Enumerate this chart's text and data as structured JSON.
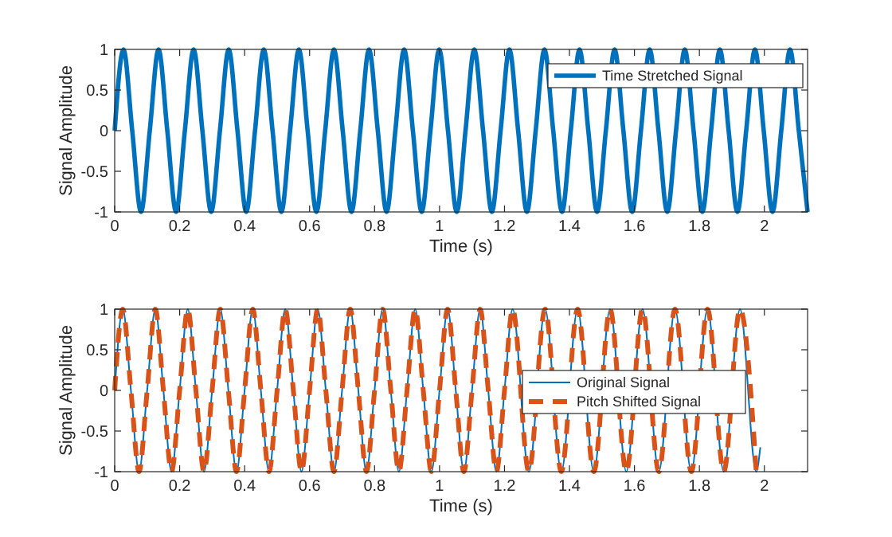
{
  "chart_data": [
    {
      "type": "line",
      "xlabel": "Time (s)",
      "ylabel": "Signal Amplitude",
      "legend": "top right",
      "xlim": [
        0,
        2.133
      ],
      "ylim": [
        -1,
        1
      ],
      "xticks": [
        0,
        0.2,
        0.4,
        0.6,
        0.8,
        1,
        1.2,
        1.4,
        1.6,
        1.8,
        2
      ],
      "yticks": [
        -1,
        -0.5,
        0,
        0.5,
        1
      ],
      "x": [
        0,
        0.027,
        0.054,
        0.081,
        0.108,
        0.135,
        0.162,
        0.189,
        0.216,
        0.243,
        0.27,
        0.297,
        0.324,
        0.351,
        0.378,
        0.405,
        0.432,
        0.459,
        0.486,
        0.513,
        0.54,
        0.567,
        0.594,
        0.621,
        0.648,
        0.675,
        0.702,
        0.729,
        0.756,
        0.783,
        0.81,
        0.837,
        0.864,
        0.891,
        0.918,
        0.945,
        0.972,
        0.999,
        1.026,
        1.053,
        1.08,
        1.107,
        1.134,
        1.161,
        1.188,
        1.215,
        1.242,
        1.269,
        1.296,
        1.323,
        1.35,
        1.377,
        1.404,
        1.431,
        1.458,
        1.485,
        1.512,
        1.539,
        1.566,
        1.593,
        1.62,
        1.647,
        1.674,
        1.701,
        1.728,
        1.755,
        1.782,
        1.809,
        1.836,
        1.863,
        1.89,
        1.917,
        1.944,
        1.971,
        1.998,
        2.025,
        2.052,
        2.079,
        2.106,
        2.133
      ],
      "series": [
        {
          "name": "Time Stretched Signal",
          "color": "#0072bd",
          "line_style": "solid",
          "values": [
            0,
            1,
            0,
            -1,
            0,
            1,
            0,
            -1,
            0,
            1,
            0,
            -1,
            0,
            1,
            0,
            -1,
            0,
            1,
            0,
            -1,
            0,
            1,
            0,
            -1,
            0,
            1,
            0,
            -1,
            0,
            1,
            0,
            -1,
            0,
            1,
            0,
            -1,
            0,
            1,
            0,
            -1,
            0,
            1,
            0,
            -1,
            0,
            1,
            0,
            -1,
            0,
            1,
            0,
            -1,
            0,
            1,
            0,
            -1,
            0,
            1,
            0,
            -1,
            0,
            1,
            0,
            -1,
            0,
            1,
            0,
            -1,
            0,
            1,
            0,
            -1,
            0,
            1,
            0,
            -1,
            0,
            1,
            0,
            -1
          ]
        }
      ]
    },
    {
      "type": "line",
      "xlabel": "Time (s)",
      "ylabel": "Signal Amplitude",
      "legend": "right",
      "xlim": [
        0,
        2.133
      ],
      "ylim": [
        -1,
        1
      ],
      "xticks": [
        0,
        0.2,
        0.4,
        0.6,
        0.8,
        1,
        1.2,
        1.4,
        1.6,
        1.8,
        2
      ],
      "yticks": [
        -1,
        -0.5,
        0,
        0.5,
        1
      ],
      "series": [
        {
          "name": "Original Signal",
          "color": "#0072bd",
          "line_style": "solid",
          "x": [
            0,
            0.025,
            0.05,
            0.075,
            0.1,
            0.125,
            0.15,
            0.175,
            0.2,
            0.225,
            0.25,
            0.275,
            0.3,
            0.325,
            0.35,
            0.375,
            0.4,
            0.425,
            0.45,
            0.475,
            0.5,
            0.525,
            0.55,
            0.575,
            0.6,
            0.625,
            0.65,
            0.675,
            0.7,
            0.725,
            0.75,
            0.775,
            0.8,
            0.825,
            0.85,
            0.875,
            0.9,
            0.925,
            0.95,
            0.975,
            1,
            1.025,
            1.05,
            1.075,
            1.1,
            1.125,
            1.15,
            1.175,
            1.2,
            1.225,
            1.275,
            1.325,
            1.375,
            1.425,
            1.475,
            1.525,
            1.575,
            1.625,
            1.675,
            1.725,
            1.775,
            1.825,
            1.875,
            1.925,
            1.975,
            1.9875
          ],
          "values": [
            0,
            1,
            0,
            -1,
            0,
            1,
            0,
            -1,
            0,
            1,
            0,
            -1,
            0,
            1,
            0,
            -1,
            0,
            1,
            0,
            -1,
            0,
            1,
            0,
            -1,
            0,
            1,
            0,
            -1,
            0,
            1,
            0,
            -1,
            0,
            1,
            0,
            -1,
            0,
            1,
            0,
            -1,
            0,
            1,
            0,
            -1,
            0,
            1,
            0,
            -1,
            0,
            1,
            -1,
            1,
            -1,
            1,
            -1,
            1,
            -1,
            1,
            -1,
            1,
            -1,
            1,
            -1,
            1,
            -1,
            -0.7
          ]
        },
        {
          "name": "Pitch Shifted Signal",
          "color": "#d95319",
          "line_style": "dashed",
          "x": [
            0,
            0.025,
            0.05,
            0.075,
            0.1,
            0.125,
            0.15,
            0.175,
            0.2,
            0.225,
            0.25,
            0.275,
            0.3,
            0.325,
            0.35,
            0.375,
            0.4,
            0.425,
            0.45,
            0.475,
            0.5,
            0.525,
            0.55,
            0.575,
            0.6,
            0.625,
            0.65,
            0.675,
            0.7,
            0.725,
            0.75,
            0.775,
            0.8,
            0.825,
            0.85,
            0.875,
            0.9,
            0.925,
            0.95,
            0.975,
            1,
            1.025,
            1.05,
            1.075,
            1.1,
            1.125,
            1.15,
            1.175,
            1.2,
            1.225,
            1.275,
            1.325,
            1.375,
            1.425,
            1.475,
            1.525,
            1.575,
            1.625,
            1.675,
            1.725,
            1.775,
            1.825,
            1.875,
            1.925,
            1.975
          ],
          "values": [
            0,
            1,
            0,
            -1,
            0,
            1,
            0,
            -1,
            0,
            1,
            0,
            -1,
            0,
            1,
            0,
            -1,
            0,
            1,
            0,
            -1,
            0,
            1,
            0,
            -1,
            0,
            1,
            0,
            -1,
            0,
            1,
            0,
            -1,
            0,
            1,
            0,
            -1,
            0,
            1,
            0,
            -1,
            0,
            1,
            0,
            -1,
            0,
            1,
            0,
            -1,
            0,
            1,
            -1,
            1,
            -1,
            1,
            -1,
            1,
            -1,
            1,
            -1,
            1,
            -1,
            1,
            -1,
            1,
            -1
          ]
        }
      ]
    }
  ]
}
